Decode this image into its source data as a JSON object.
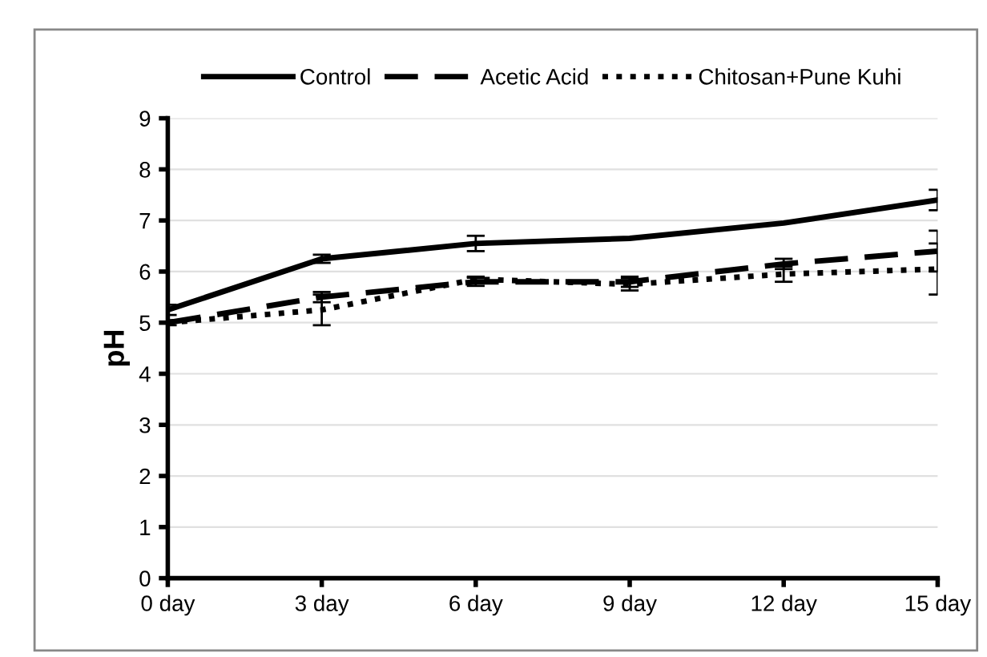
{
  "chart_data": {
    "type": "line",
    "ylabel": "pH",
    "categories": [
      "0 day",
      "3 day",
      "6 day",
      "9 day",
      "12 day",
      "15 day"
    ],
    "series": [
      {
        "name": "Control",
        "color": "#000000",
        "line_style": "solid",
        "values": [
          5.25,
          6.25,
          6.55,
          6.65,
          6.95,
          7.4
        ],
        "errors": [
          0.1,
          0.08,
          0.15,
          null,
          null,
          0.2
        ]
      },
      {
        "name": "Acetic Acid",
        "color": "#000000",
        "line_style": "dashed",
        "values": [
          5.0,
          5.5,
          5.8,
          5.8,
          6.15,
          6.4
        ],
        "errors": [
          null,
          0.1,
          0.08,
          0.1,
          0.1,
          0.4
        ]
      },
      {
        "name": "Chitosan+Pune Kuhi",
        "color": "#000000",
        "line_style": "dotted",
        "values": [
          5.0,
          5.25,
          5.85,
          5.75,
          5.95,
          6.05
        ],
        "errors": [
          0.05,
          0.3,
          0.05,
          0.12,
          0.15,
          0.5
        ]
      }
    ],
    "ylim": [
      0,
      9
    ],
    "yticks": [
      0,
      1,
      2,
      3,
      4,
      5,
      6,
      7,
      8,
      9
    ],
    "grid": "y",
    "legend": "top",
    "marker": "none"
  }
}
